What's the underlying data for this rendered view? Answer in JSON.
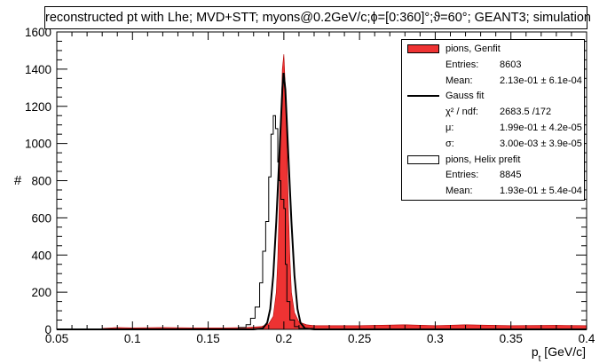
{
  "title": "reconstructed pt with Lhe; MVD+STT; myons@0.2GeV/c;ϕ=[0:360]°;ϑ=60°; GEANT3; simulation",
  "chart_data": {
    "type": "histogram",
    "xlabel": "p_t [GeV/c]",
    "ylabel": "#",
    "xlim": [
      0.05,
      0.4
    ],
    "ylim": [
      0,
      1600
    ],
    "x_ticks": [
      "0.05",
      "0.1",
      "0.15",
      "0.2",
      "0.25",
      "0.3",
      "0.35",
      "0.4"
    ],
    "y_ticks": [
      "0",
      "200",
      "400",
      "600",
      "800",
      "1000",
      "1200",
      "1400",
      "1600"
    ],
    "grid": false,
    "legend_position": "top-right",
    "series": [
      {
        "name": "pions, Genfit",
        "style": "filled",
        "color": "#ee3333",
        "points": [
          [
            0.08,
            5
          ],
          [
            0.09,
            10
          ],
          [
            0.1,
            8
          ],
          [
            0.12,
            10
          ],
          [
            0.14,
            8
          ],
          [
            0.16,
            8
          ],
          [
            0.175,
            10
          ],
          [
            0.185,
            15
          ],
          [
            0.19,
            30
          ],
          [
            0.193,
            70
          ],
          [
            0.195,
            200
          ],
          [
            0.196,
            380
          ],
          [
            0.197,
            700
          ],
          [
            0.198,
            1100
          ],
          [
            0.199,
            1400
          ],
          [
            0.2,
            1480
          ],
          [
            0.201,
            1300
          ],
          [
            0.202,
            1000
          ],
          [
            0.203,
            650
          ],
          [
            0.204,
            380
          ],
          [
            0.205,
            200
          ],
          [
            0.207,
            90
          ],
          [
            0.21,
            40
          ],
          [
            0.215,
            25
          ],
          [
            0.22,
            20
          ],
          [
            0.25,
            20
          ],
          [
            0.28,
            25
          ],
          [
            0.3,
            20
          ],
          [
            0.32,
            25
          ],
          [
            0.35,
            20
          ],
          [
            0.38,
            22
          ],
          [
            0.4,
            20
          ]
        ]
      },
      {
        "name": "Gauss fit",
        "style": "line",
        "color": "#000000",
        "points": [
          [
            0.05,
            0
          ],
          [
            0.18,
            0
          ],
          [
            0.186,
            5
          ],
          [
            0.189,
            35
          ],
          [
            0.191,
            110
          ],
          [
            0.193,
            290
          ],
          [
            0.195,
            580
          ],
          [
            0.197,
            930
          ],
          [
            0.199,
            1290
          ],
          [
            0.1998,
            1380
          ],
          [
            0.201,
            1290
          ],
          [
            0.203,
            930
          ],
          [
            0.205,
            580
          ],
          [
            0.207,
            290
          ],
          [
            0.209,
            110
          ],
          [
            0.211,
            35
          ],
          [
            0.214,
            5
          ],
          [
            0.22,
            0
          ],
          [
            0.4,
            0
          ]
        ]
      },
      {
        "name": "pions, Helix prefit",
        "style": "step",
        "color": "#000000",
        "points": [
          [
            0.05,
            0
          ],
          [
            0.16,
            0
          ],
          [
            0.17,
            10
          ],
          [
            0.175,
            25
          ],
          [
            0.178,
            60
          ],
          [
            0.181,
            120
          ],
          [
            0.184,
            250
          ],
          [
            0.186,
            420
          ],
          [
            0.188,
            580
          ],
          [
            0.19,
            820
          ],
          [
            0.1915,
            1050
          ],
          [
            0.193,
            1150
          ],
          [
            0.1945,
            1080
          ],
          [
            0.196,
            900
          ],
          [
            0.197,
            800
          ],
          [
            0.198,
            700
          ],
          [
            0.2,
            650
          ],
          [
            0.201,
            350
          ],
          [
            0.202,
            150
          ],
          [
            0.204,
            50
          ],
          [
            0.207,
            15
          ],
          [
            0.21,
            5
          ],
          [
            0.22,
            0
          ],
          [
            0.4,
            0
          ]
        ]
      }
    ]
  },
  "legend": {
    "genfit_label": "pions, Genfit",
    "genfit_entries_label": "Entries:",
    "genfit_entries": "8603",
    "genfit_mean_label": "Mean:",
    "genfit_mean": "2.13e-01 ± 6.1e-04",
    "gauss_label": "Gauss fit",
    "chi2_label": "χ² / ndf:",
    "chi2": "2683.5 /172",
    "mu_label": "μ:",
    "mu": "1.99e-01 ± 4.2e-05",
    "sigma_label": "σ:",
    "sigma": "3.00e-03 ± 3.9e-05",
    "helix_label": "pions, Helix prefit",
    "helix_entries_label": "Entries:",
    "helix_entries": "8845",
    "helix_mean_label": "Mean:",
    "helix_mean": "1.93e-01 ± 5.4e-04"
  }
}
